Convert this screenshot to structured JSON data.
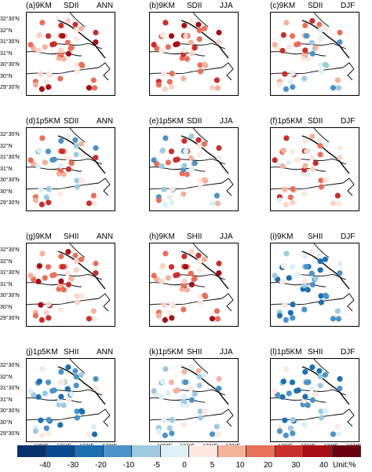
{
  "panels": [
    {
      "id": "a",
      "label": "(a)9KM",
      "var": "SDII",
      "season": "ANN",
      "tone": "red"
    },
    {
      "id": "b",
      "label": "(b)9KM",
      "var": "SDII",
      "season": "JJA",
      "tone": "red"
    },
    {
      "id": "c",
      "label": "(c)9KM",
      "var": "SDII",
      "season": "DJF",
      "tone": "mixed"
    },
    {
      "id": "d",
      "label": "(d)1p5KM",
      "var": "SDII",
      "season": "ANN",
      "tone": "mixed"
    },
    {
      "id": "e",
      "label": "(e)1p5KM",
      "var": "SDII",
      "season": "JJA",
      "tone": "mixed"
    },
    {
      "id": "f",
      "label": "(f)1p5KM",
      "var": "SDII",
      "season": "DJF",
      "tone": "redlight"
    },
    {
      "id": "g",
      "label": "(g)9KM",
      "var": "SHII",
      "season": "ANN",
      "tone": "red"
    },
    {
      "id": "h",
      "label": "(h)9KM",
      "var": "SHII",
      "season": "JJA",
      "tone": "red"
    },
    {
      "id": "i",
      "label": "(i)9KM",
      "var": "SHII",
      "season": "DJF",
      "tone": "blue"
    },
    {
      "id": "j",
      "label": "(j)1p5KM",
      "var": "SHII",
      "season": "ANN",
      "tone": "blue"
    },
    {
      "id": "k",
      "label": "(k)1p5KM",
      "var": "SHII",
      "season": "JJA",
      "tone": "bluelight"
    },
    {
      "id": "l",
      "label": "(l)1p5KM",
      "var": "SHII",
      "season": "DJF",
      "tone": "blue"
    }
  ],
  "yticks": [
    "32°30'N",
    "32°N",
    "31°30'N",
    "31°N",
    "30°30'N",
    "30°N",
    "29°30'N"
  ],
  "xticks": [
    "120°E",
    "121°E",
    "122°E",
    "123°E"
  ],
  "colorbar": {
    "labels": [
      "-40",
      "-30",
      "-20",
      "-10",
      "-5",
      "0",
      "5",
      "10",
      "20",
      "30",
      "40"
    ],
    "colors": [
      "#08306b",
      "#084a91",
      "#1c6fb0",
      "#4c93c8",
      "#9ecae1",
      "#def0f7",
      "#fde8e0",
      "#f6b39c",
      "#e8705a",
      "#c9302c",
      "#a50f15",
      "#6b0010"
    ],
    "unit": "Unit:%"
  }
}
